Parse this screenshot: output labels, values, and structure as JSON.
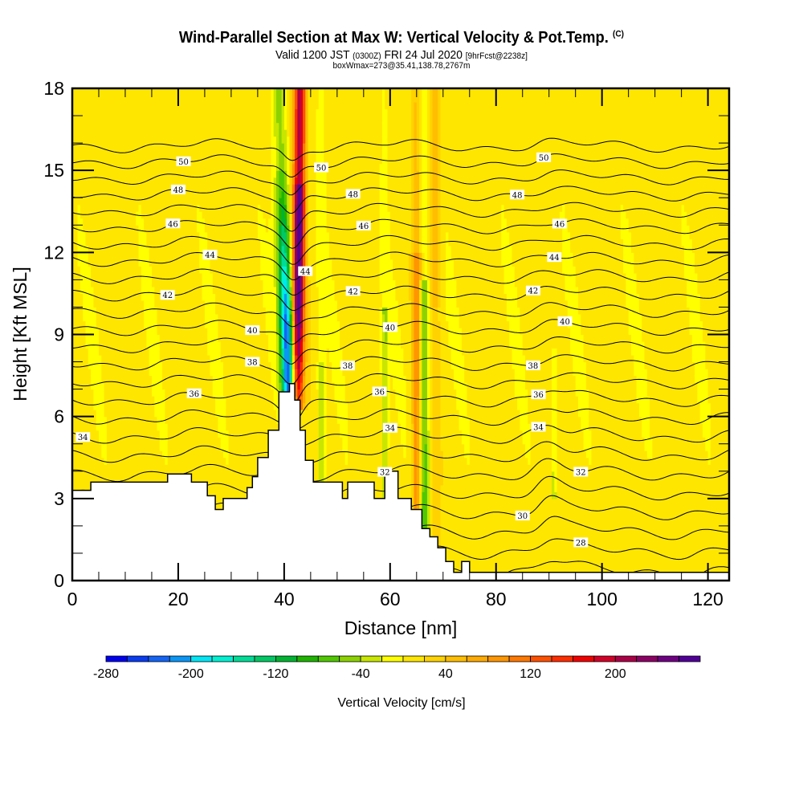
{
  "header": {
    "title": "Wind-Parallel Section at Max W: Vertical Velocity & Pot.Temp.",
    "copyright": "(C)",
    "valid_prefix": "Valid 1200 JST",
    "valid_utc": "(0300Z)",
    "valid_date": "FRI 24 Jul 2020",
    "forecast": "[9hrFcst@2238z]",
    "boxwmax": "boxWmax=273@35.41,138.78,2767m"
  },
  "chart_data": {
    "type": "heatmap",
    "title": "Wind-Parallel Section at Max W: Vertical Velocity & Pot.Temp.",
    "xlabel": "Distance [nm]",
    "ylabel": "Height [Kft MSL]",
    "xlim": [
      0,
      124
    ],
    "ylim": [
      0,
      18
    ],
    "x_ticks": [
      0,
      20,
      40,
      60,
      80,
      100,
      120
    ],
    "x_tick_labels": [
      "0",
      "20",
      "40",
      "60",
      "80",
      "100",
      "120"
    ],
    "y_ticks": [
      0,
      3,
      6,
      9,
      12,
      15,
      18
    ],
    "y_tick_labels": [
      "0",
      "3",
      "6",
      "9",
      "12",
      "15",
      "18"
    ],
    "x_minor_step": 5,
    "y_minor_step": 1,
    "colorbar": {
      "label": "Vertical Velocity [cm/s]",
      "levels": [
        -280,
        -260,
        -240,
        -220,
        -200,
        -180,
        -160,
        -140,
        -120,
        -100,
        -80,
        -60,
        -40,
        -20,
        0,
        20,
        40,
        60,
        80,
        100,
        120,
        140,
        160,
        180,
        200,
        220,
        240,
        260,
        280
      ],
      "tick_values": [
        -280,
        -200,
        -120,
        -40,
        40,
        120,
        200
      ],
      "tick_labels": [
        "-280",
        "-200",
        "-120",
        "-40",
        "40",
        "120",
        "200"
      ],
      "colors": [
        "#0000ee",
        "#0a3cf0",
        "#1464f5",
        "#0a96f5",
        "#00e6f5",
        "#00f0d2",
        "#00dc96",
        "#00c864",
        "#00b432",
        "#1eb400",
        "#50c800",
        "#8cd200",
        "#c8e600",
        "#ffff00",
        "#ffe600",
        "#ffd200",
        "#ffbe00",
        "#ffaa00",
        "#ff9600",
        "#ff7800",
        "#ff5000",
        "#ff2d00",
        "#f00000",
        "#d20028",
        "#aa0046",
        "#8c0064",
        "#6e0082",
        "#500096"
      ]
    },
    "contour_field": "Potential Temperature",
    "contour_interval": 1,
    "contour_label_interval": 2,
    "contour_labels": [
      "50",
      "48",
      "46",
      "44",
      "42",
      "40",
      "38",
      "36",
      "34",
      "32",
      "30",
      "28"
    ],
    "terrain": {
      "x": [
        0,
        0,
        3.5,
        3.5,
        18,
        18,
        22.5,
        22.5,
        25.5,
        25.5,
        27,
        27,
        28.5,
        28.5,
        33,
        33,
        34,
        34,
        35,
        35,
        37,
        37,
        39,
        39,
        41,
        41,
        42,
        42,
        43,
        43,
        44,
        44,
        45.5,
        45.5,
        51,
        51,
        52,
        52,
        57,
        57,
        59,
        59,
        61.5,
        61.5,
        64,
        64,
        66,
        66,
        67.5,
        67.5,
        69,
        69,
        70.5,
        70.5,
        72,
        72,
        73.5,
        73.5,
        75,
        75,
        124,
        124
      ],
      "heights": [
        0,
        3.3,
        3.3,
        3.6,
        3.6,
        3.9,
        3.9,
        3.6,
        3.6,
        3.1,
        3.1,
        2.6,
        2.6,
        3.0,
        3.0,
        3.4,
        3.4,
        3.8,
        3.8,
        4.5,
        4.5,
        5.5,
        5.5,
        6.9,
        6.9,
        7.2,
        7.2,
        6.6,
        6.6,
        5.5,
        5.5,
        4.4,
        4.4,
        3.6,
        3.6,
        3.0,
        3.0,
        3.6,
        3.6,
        3.0,
        3.0,
        4.0,
        4.0,
        3.0,
        3.0,
        2.6,
        2.6,
        1.9,
        1.9,
        1.6,
        1.6,
        1.2,
        1.2,
        0.7,
        0.7,
        0.3,
        0.3,
        0.7,
        0.7,
        0.3,
        0.3,
        0
      ]
    },
    "features": [
      {
        "name": "updraft-core",
        "x_top": 43,
        "x_bottom": 42.5,
        "peak_cm_s": 273,
        "height_range": [
          6.5,
          18
        ]
      },
      {
        "name": "downdraft-core",
        "x_top": 39,
        "x_bottom": 41,
        "peak_cm_s": -240,
        "height_range": [
          7,
          14
        ]
      },
      {
        "name": "secondary-updraft",
        "x": 65,
        "peak_cm_s": 90
      },
      {
        "name": "secondary-downdraft",
        "x": 66.5,
        "peak_cm_s": -80
      }
    ]
  }
}
